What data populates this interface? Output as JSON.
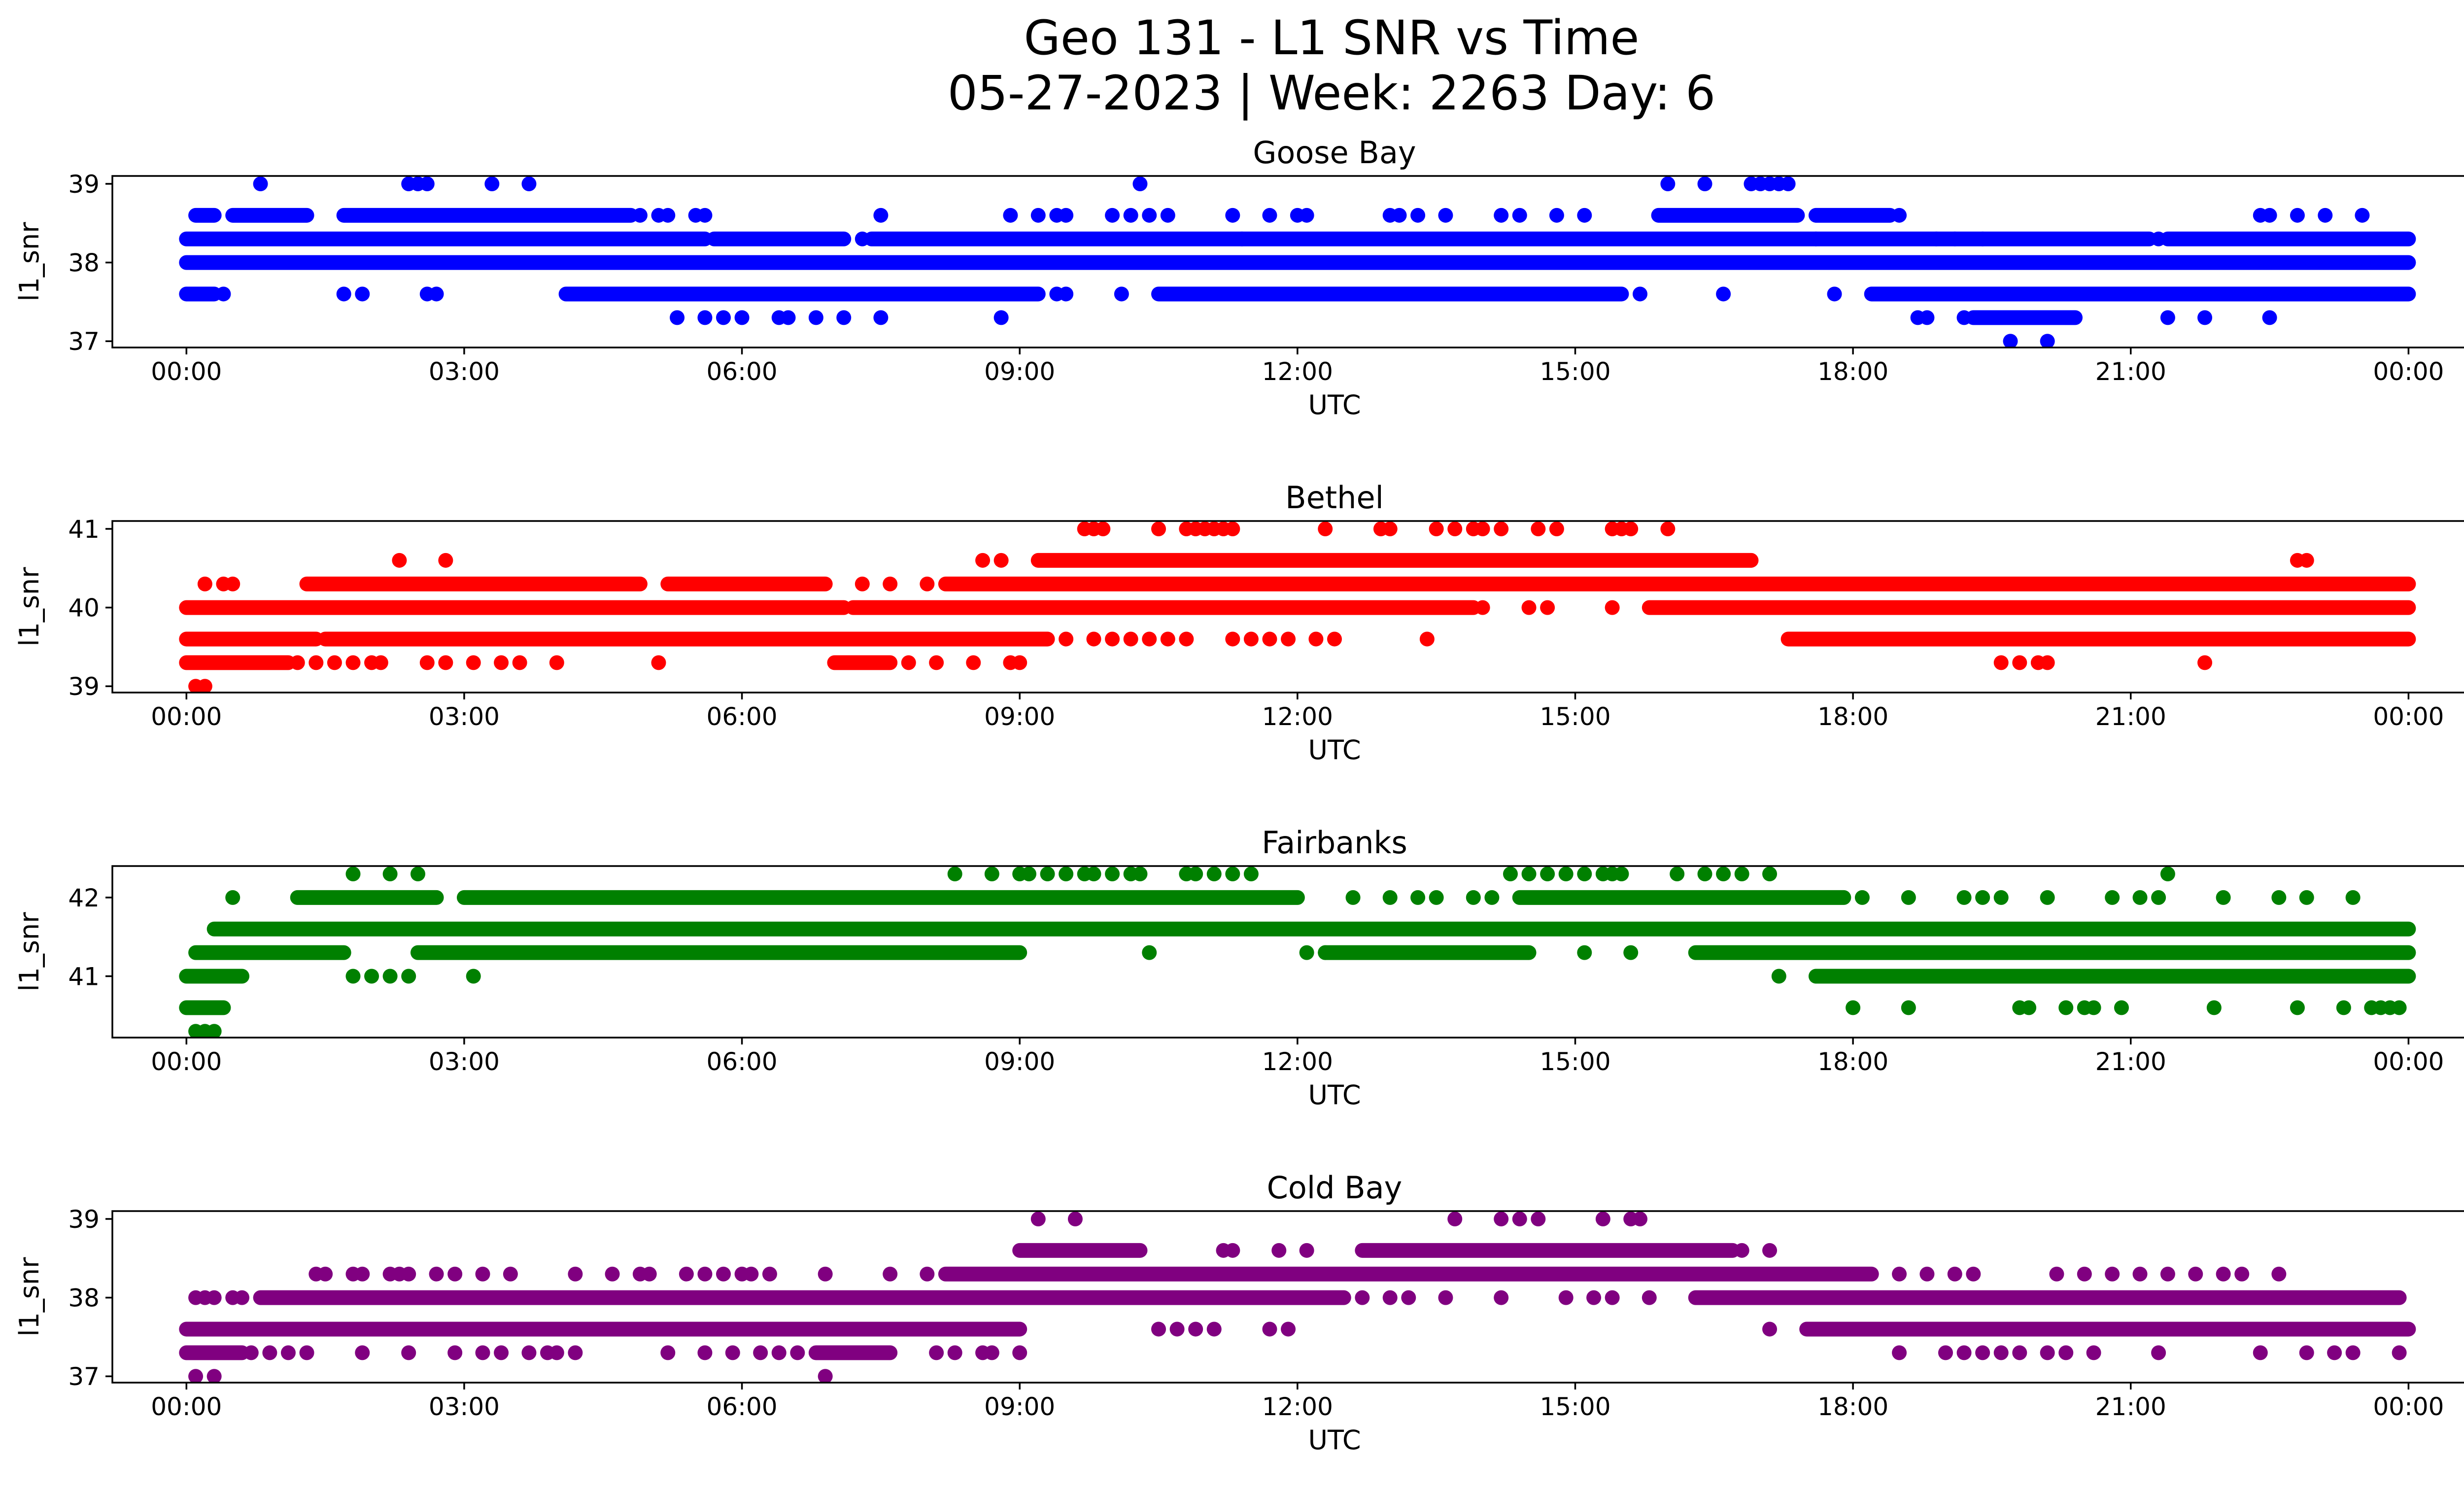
{
  "figure": {
    "title_line1": "Geo 131 - L1 SNR vs Time",
    "title_line2": "05-27-2023 | Week: 2263 Day: 6"
  },
  "chart_data": [
    {
      "type": "scatter",
      "title": "Goose Bay",
      "xlabel": "UTC",
      "ylabel": "l1_snr",
      "color": "#0000ff",
      "xlim_hours": [
        -0.8,
        25.6
      ],
      "ylim": [
        36.92,
        39.1
      ],
      "yticks": [
        39,
        38,
        37
      ],
      "xticks": [
        "00:00",
        "03:00",
        "06:00",
        "09:00",
        "12:00",
        "15:00",
        "18:00",
        "21:00",
        "00:00"
      ],
      "bands": [
        {
          "y": 38.0,
          "segments": [
            [
              0.0,
              24.0
            ]
          ]
        },
        {
          "y": 38.3,
          "segments": [
            [
              0.0,
              5.6
            ],
            [
              5.7,
              7.1
            ],
            [
              7.4,
              21.2
            ],
            [
              21.4,
              24.0
            ]
          ]
        },
        {
          "y": 37.6,
          "segments": [
            [
              0.0,
              0.3
            ],
            [
              4.1,
              9.2
            ],
            [
              10.5,
              15.5
            ],
            [
              18.2,
              24.0
            ]
          ]
        },
        {
          "y": 38.6,
          "segments": [
            [
              0.1,
              0.3
            ],
            [
              0.5,
              1.3
            ],
            [
              1.7,
              4.8
            ],
            [
              15.9,
              17.4
            ],
            [
              17.6,
              18.4
            ]
          ]
        },
        {
          "y": 37.3,
          "segments": [
            [
              19.3,
              20.4
            ]
          ]
        }
      ],
      "scatter": {
        "39.0": [
          0.8,
          2.4,
          2.5,
          2.6,
          3.3,
          3.7,
          10.3,
          16.0,
          16.4,
          16.9,
          17.0,
          17.1,
          17.2,
          17.3
        ],
        "38.6": [
          4.9,
          5.1,
          5.2,
          5.5,
          5.6,
          7.5,
          8.9,
          9.2,
          9.4,
          9.5,
          10.0,
          10.2,
          10.4,
          10.6,
          11.3,
          11.7,
          12.0,
          12.1,
          13.0,
          13.1,
          13.3,
          13.6,
          14.2,
          14.4,
          14.8,
          15.1,
          18.5,
          22.4,
          22.5,
          22.8,
          23.1,
          23.5
        ],
        "38.3": [
          7.3,
          11.4,
          17.6,
          18.9,
          19.1,
          19.4,
          21.3
        ],
        "38.0": [],
        "37.6": [
          0.4,
          1.7,
          1.9,
          2.6,
          2.7,
          9.4,
          9.5,
          10.1,
          15.7,
          16.6,
          17.8
        ],
        "37.3": [
          5.3,
          5.6,
          5.8,
          6.0,
          6.4,
          6.5,
          6.8,
          7.1,
          7.5,
          8.8,
          18.7,
          18.8,
          19.2,
          21.4,
          21.8,
          22.5
        ],
        "37.0": [
          19.7,
          20.1
        ]
      }
    },
    {
      "type": "scatter",
      "title": "Bethel",
      "xlabel": "UTC",
      "ylabel": "l1_snr",
      "color": "#ff0000",
      "xlim_hours": [
        -0.8,
        25.6
      ],
      "ylim": [
        38.92,
        41.1
      ],
      "yticks": [
        41,
        40,
        39
      ],
      "xticks": [
        "00:00",
        "03:00",
        "06:00",
        "09:00",
        "12:00",
        "15:00",
        "18:00",
        "21:00",
        "00:00"
      ],
      "bands": [
        {
          "y": 40.0,
          "segments": [
            [
              0.0,
              7.1
            ],
            [
              7.2,
              13.9
            ],
            [
              15.8,
              24.0
            ]
          ]
        },
        {
          "y": 39.6,
          "segments": [
            [
              0.0,
              1.4
            ],
            [
              1.5,
              9.3
            ],
            [
              17.3,
              24.0
            ]
          ]
        },
        {
          "y": 40.3,
          "segments": [
            [
              1.3,
              4.9
            ],
            [
              5.2,
              6.9
            ],
            [
              8.2,
              24.0
            ]
          ]
        },
        {
          "y": 40.6,
          "segments": [
            [
              9.2,
              16.9
            ]
          ]
        },
        {
          "y": 39.3,
          "segments": [
            [
              0.0,
              1.1
            ],
            [
              7.0,
              7.6
            ]
          ]
        }
      ],
      "scatter": {
        "41.0": [
          9.7,
          9.8,
          9.9,
          10.5,
          10.8,
          10.9,
          11.0,
          11.1,
          11.2,
          11.3,
          12.3,
          12.9,
          13.0,
          13.5,
          13.7,
          13.9,
          14.0,
          14.2,
          14.6,
          14.8,
          15.4,
          15.5,
          15.6,
          16.0
        ],
        "40.6": [
          2.3,
          2.8,
          8.6,
          8.8,
          22.8,
          22.9
        ],
        "40.3": [
          0.2,
          0.4,
          0.5,
          7.3,
          7.6,
          8.0
        ],
        "40.0": [
          14.0,
          14.5,
          14.7,
          15.4
        ],
        "39.6": [
          9.5,
          9.8,
          10.0,
          10.2,
          10.4,
          10.6,
          10.8,
          11.3,
          11.5,
          11.7,
          11.9,
          12.2,
          12.4,
          13.4
        ],
        "39.3": [
          1.2,
          1.4,
          1.6,
          1.8,
          2.0,
          2.1,
          2.6,
          2.8,
          3.1,
          3.4,
          3.6,
          4.0,
          5.1,
          7.8,
          8.1,
          8.5,
          8.9,
          9.0,
          19.6,
          19.8,
          20.0,
          20.1,
          21.8
        ],
        "39.0": [
          0.1,
          0.2
        ]
      }
    },
    {
      "type": "scatter",
      "title": "Fairbanks",
      "xlabel": "UTC",
      "ylabel": "l1_snr",
      "color": "#008000",
      "xlim_hours": [
        -0.8,
        25.6
      ],
      "ylim": [
        40.22,
        42.4
      ],
      "yticks": [
        42,
        41
      ],
      "xticks": [
        "00:00",
        "03:00",
        "06:00",
        "09:00",
        "12:00",
        "15:00",
        "18:00",
        "21:00",
        "00:00"
      ],
      "bands": [
        {
          "y": 41.6,
          "segments": [
            [
              0.3,
              24.0
            ]
          ]
        },
        {
          "y": 42.0,
          "segments": [
            [
              1.2,
              2.7
            ],
            [
              3.0,
              12.0
            ],
            [
              14.4,
              17.9
            ]
          ]
        },
        {
          "y": 41.3,
          "segments": [
            [
              0.1,
              1.7
            ],
            [
              2.5,
              9.0
            ],
            [
              12.3,
              14.5
            ],
            [
              16.3,
              24.0
            ]
          ]
        },
        {
          "y": 41.0,
          "segments": [
            [
              0.0,
              0.6
            ],
            [
              17.6,
              24.0
            ]
          ]
        },
        {
          "y": 40.6,
          "segments": [
            [
              0.0,
              0.4
            ]
          ]
        }
      ],
      "scatter": {
        "42.3": [
          1.8,
          2.2,
          2.5,
          8.3,
          8.7,
          9.0,
          9.1,
          9.3,
          9.5,
          9.7,
          9.8,
          10.0,
          10.2,
          10.3,
          10.8,
          10.9,
          11.1,
          11.3,
          11.5,
          14.3,
          14.5,
          14.7,
          14.9,
          15.1,
          15.3,
          15.4,
          15.5,
          16.1,
          16.4,
          16.6,
          16.8,
          17.1,
          21.4
        ],
        "42.0": [
          0.5,
          12.6,
          13.0,
          13.3,
          13.5,
          13.9,
          14.1,
          18.1,
          18.6,
          19.2,
          19.4,
          19.6,
          20.1,
          20.8,
          21.1,
          21.3,
          22.0,
          22.6,
          22.9,
          23.4
        ],
        "41.3": [
          10.4,
          12.1,
          12.3,
          15.1,
          15.6
        ],
        "41.0": [
          1.8,
          2.0,
          2.2,
          2.4,
          3.1,
          17.2
        ],
        "40.6": [
          18.0,
          18.6,
          19.8,
          19.9,
          20.3,
          20.5,
          20.6,
          20.9,
          21.9,
          22.8,
          23.3,
          23.6,
          23.7,
          23.8,
          23.9
        ],
        "40.3": [
          0.1,
          0.2,
          0.3
        ]
      }
    },
    {
      "type": "scatter",
      "title": "Cold Bay",
      "xlabel": "UTC",
      "ylabel": "l1_snr",
      "color": "#800080",
      "xlim_hours": [
        -0.8,
        25.6
      ],
      "ylim": [
        36.92,
        39.1
      ],
      "yticks": [
        39,
        38,
        37
      ],
      "xticks": [
        "00:00",
        "03:00",
        "06:00",
        "09:00",
        "12:00",
        "15:00",
        "18:00",
        "21:00",
        "00:00"
      ],
      "bands": [
        {
          "y": 38.0,
          "segments": [
            [
              0.8,
              12.5
            ],
            [
              16.3,
              23.9
            ]
          ]
        },
        {
          "y": 37.6,
          "segments": [
            [
              0.0,
              9.0
            ],
            [
              17.5,
              24.0
            ]
          ]
        },
        {
          "y": 38.3,
          "segments": [
            [
              8.2,
              18.2
            ]
          ]
        },
        {
          "y": 38.6,
          "segments": [
            [
              9.0,
              10.3
            ],
            [
              12.7,
              16.7
            ]
          ]
        },
        {
          "y": 37.3,
          "segments": [
            [
              0.0,
              0.6
            ],
            [
              6.8,
              7.6
            ]
          ]
        }
      ],
      "scatter": {
        "39.0": [
          9.2,
          9.6,
          13.7,
          14.2,
          14.4,
          14.6,
          15.3,
          15.6,
          15.7
        ],
        "38.6": [
          11.2,
          11.3,
          11.8,
          12.1,
          16.8,
          17.1
        ],
        "38.3": [
          1.4,
          1.5,
          1.8,
          1.9,
          2.2,
          2.3,
          2.4,
          2.7,
          2.9,
          3.2,
          3.5,
          4.2,
          4.6,
          4.9,
          5.0,
          5.4,
          5.6,
          5.8,
          6.0,
          6.1,
          6.3,
          6.9,
          7.6,
          8.0,
          18.5,
          18.8,
          19.1,
          19.3,
          20.2,
          20.5,
          20.8,
          21.1,
          21.4,
          21.7,
          22.0,
          22.2,
          22.6
        ],
        "38.0": [
          0.1,
          0.2,
          0.3,
          0.5,
          0.6,
          12.7,
          13.0,
          13.2,
          13.6,
          14.2,
          14.9,
          15.2,
          15.4,
          15.8
        ],
        "37.6": [
          10.5,
          10.7,
          10.9,
          11.1,
          11.7,
          11.9,
          17.1
        ],
        "37.3": [
          0.7,
          0.9,
          1.1,
          1.3,
          1.9,
          2.4,
          2.9,
          3.2,
          3.4,
          3.7,
          3.9,
          4.0,
          4.2,
          5.2,
          5.6,
          5.9,
          6.2,
          6.4,
          6.6,
          8.1,
          8.3,
          8.6,
          8.7,
          9.0,
          18.5,
          19.0,
          19.2,
          19.4,
          19.6,
          19.8,
          20.1,
          20.3,
          20.6,
          21.3,
          22.4,
          22.9,
          23.2,
          23.4,
          23.9
        ],
        "37.0": [
          0.1,
          0.3,
          6.9
        ]
      }
    }
  ]
}
